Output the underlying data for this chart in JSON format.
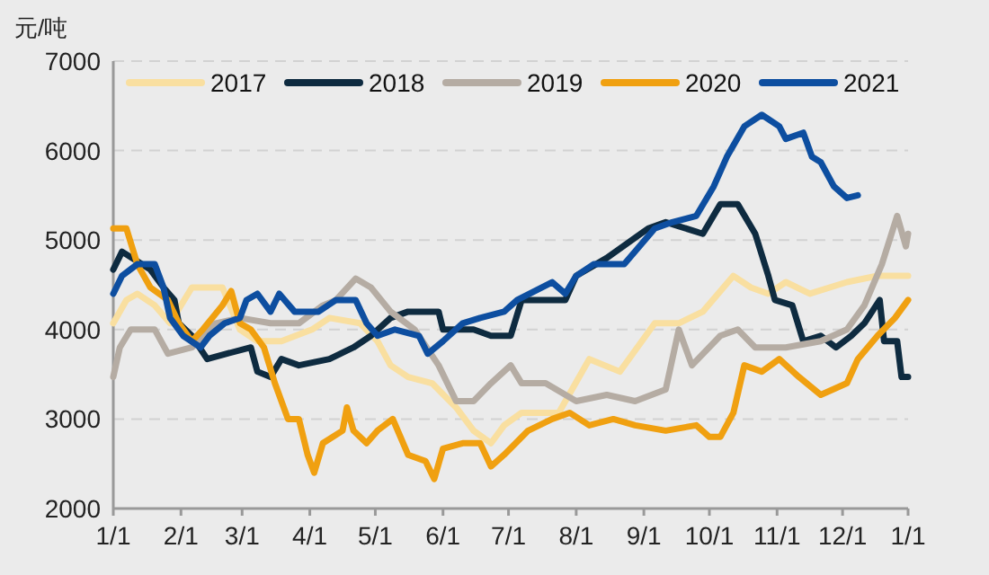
{
  "chart_data": {
    "type": "line",
    "ylabel": "元/吨",
    "xlim": [
      "--01-01",
      "--12-31"
    ],
    "ylim": [
      2000,
      7000
    ],
    "xticks": [
      {
        "value": "--01-01",
        "label": "1/1"
      },
      {
        "value": "--02-01",
        "label": "2/1"
      },
      {
        "value": "--03-01",
        "label": "3/1"
      },
      {
        "value": "--04-01",
        "label": "4/1"
      },
      {
        "value": "--05-01",
        "label": "5/1"
      },
      {
        "value": "--06-01",
        "label": "6/1"
      },
      {
        "value": "--07-01",
        "label": "7/1"
      },
      {
        "value": "--08-01",
        "label": "8/1"
      },
      {
        "value": "--09-01",
        "label": "9/1"
      },
      {
        "value": "--10-01",
        "label": "10/1"
      },
      {
        "value": "--11-01",
        "label": "11/1"
      },
      {
        "value": "--12-01",
        "label": "12/1"
      },
      {
        "value": "--12-31",
        "label": "1/1"
      }
    ],
    "yticks": [
      2000,
      3000,
      4000,
      5000,
      6000,
      7000
    ],
    "grid": "y",
    "legend": "top",
    "marker": "none",
    "line_style": "solid",
    "series": [
      {
        "name": "2017",
        "color": "#f9dfa0",
        "x": [
          "--01-01",
          "--01-07",
          "--01-12",
          "--01-20",
          "--01-27",
          "--02-06",
          "--02-20",
          "--02-28",
          "--03-08",
          "--03-19",
          "--04-02",
          "--04-10",
          "--04-24",
          "--05-02",
          "--05-08",
          "--05-16",
          "--05-27",
          "--06-07",
          "--06-15",
          "--06-23",
          "--06-29",
          "--07-07",
          "--07-24",
          "--08-07",
          "--08-21",
          "--09-06",
          "--09-17",
          "--09-28",
          "--10-12",
          "--10-20",
          "--10-28",
          "--11-05",
          "--11-16",
          "--12-03",
          "--12-17",
          "--12-31"
        ],
        "values": [
          4070,
          4330,
          4400,
          4270,
          4070,
          4470,
          4470,
          4000,
          3870,
          3870,
          4000,
          4130,
          4070,
          3870,
          3600,
          3470,
          3400,
          3130,
          2870,
          2730,
          2930,
          3070,
          3070,
          3670,
          3530,
          4070,
          4070,
          4200,
          4600,
          4470,
          4400,
          4530,
          4400,
          4530,
          4600,
          4600
        ]
      },
      {
        "name": "2018",
        "color": "#0e2b40",
        "x": [
          "--01-01",
          "--01-05",
          "--01-18",
          "--01-24",
          "--01-29",
          "--01-31",
          "--02-06",
          "--02-13",
          "--02-22",
          "--03-05",
          "--03-08",
          "--03-14",
          "--03-19",
          "--03-27",
          "--04-10",
          "--04-21",
          "--04-29",
          "--05-08",
          "--05-16",
          "--05-30",
          "--06-01",
          "--06-15",
          "--06-23",
          "--07-02",
          "--07-07",
          "--07-27",
          "--08-01",
          "--08-15",
          "--09-03",
          "--09-11",
          "--09-28",
          "--10-06",
          "--10-14",
          "--10-22",
          "--10-28",
          "--10-31",
          "--11-08",
          "--11-13",
          "--11-21",
          "--11-28",
          "--12-05",
          "--12-11",
          "--12-18",
          "--12-20",
          "--12-26",
          "--12-28",
          "--12-31"
        ],
        "values": [
          4670,
          4870,
          4670,
          4470,
          4330,
          4070,
          3930,
          3670,
          3730,
          3800,
          3530,
          3470,
          3670,
          3600,
          3670,
          3800,
          3930,
          4130,
          4200,
          4200,
          4000,
          4000,
          3930,
          3930,
          4330,
          4330,
          4600,
          4800,
          5130,
          5200,
          5070,
          5400,
          5400,
          5070,
          4600,
          4330,
          4270,
          3870,
          3930,
          3800,
          3930,
          4070,
          4330,
          3870,
          3870,
          3470,
          3470
        ]
      },
      {
        "name": "2019",
        "color": "#b5aca3",
        "x": [
          "--01-01",
          "--01-04",
          "--01-09",
          "--01-20",
          "--01-26",
          "--02-06",
          "--02-17",
          "--02-28",
          "--03-14",
          "--03-27",
          "--04-07",
          "--04-13",
          "--04-22",
          "--04-29",
          "--05-08",
          "--05-19",
          "--05-30",
          "--06-07",
          "--06-15",
          "--06-23",
          "--07-02",
          "--07-07",
          "--07-18",
          "--08-01",
          "--08-15",
          "--08-28",
          "--09-11",
          "--09-17",
          "--09-23",
          "--10-06",
          "--10-14",
          "--10-22",
          "--11-05",
          "--11-21",
          "--12-03",
          "--12-11",
          "--12-19",
          "--12-26",
          "--12-30",
          "--12-31"
        ],
        "values": [
          3470,
          3800,
          4000,
          4000,
          3730,
          3800,
          4070,
          4130,
          4070,
          4070,
          4270,
          4330,
          4570,
          4470,
          4200,
          4000,
          3600,
          3200,
          3200,
          3400,
          3600,
          3400,
          3400,
          3200,
          3270,
          3200,
          3330,
          4000,
          3600,
          3930,
          4000,
          3800,
          3800,
          3870,
          4000,
          4270,
          4730,
          5270,
          4930,
          5070
        ]
      },
      {
        "name": "2020",
        "color": "#f0a010",
        "x": [
          "--01-01",
          "--01-07",
          "--01-12",
          "--01-18",
          "--01-26",
          "--01-31",
          "--02-06",
          "--02-11",
          "--02-20",
          "--02-24",
          "--02-28",
          "--03-05",
          "--03-11",
          "--03-16",
          "--03-22",
          "--03-27",
          "--03-31",
          "--04-03",
          "--04-07",
          "--04-16",
          "--04-18",
          "--04-21",
          "--04-27",
          "--05-02",
          "--05-09",
          "--05-16",
          "--05-24",
          "--05-28",
          "--06-01",
          "--06-10",
          "--06-18",
          "--06-23",
          "--06-29",
          "--07-10",
          "--07-21",
          "--07-29",
          "--08-07",
          "--08-18",
          "--08-28",
          "--09-11",
          "--09-25",
          "--10-01",
          "--10-06",
          "--10-12",
          "--10-17",
          "--10-25",
          "--11-02",
          "--11-11",
          "--11-21",
          "--12-03",
          "--12-08",
          "--12-17",
          "--12-25",
          "--12-31"
        ],
        "values": [
          5130,
          5130,
          4730,
          4470,
          4330,
          4070,
          3870,
          4000,
          4270,
          4430,
          4070,
          4000,
          3800,
          3400,
          3000,
          3000,
          2600,
          2400,
          2730,
          2870,
          3130,
          2870,
          2730,
          2870,
          3000,
          2600,
          2530,
          2330,
          2670,
          2730,
          2730,
          2470,
          2600,
          2870,
          3000,
          3070,
          2930,
          3000,
          2930,
          2870,
          2930,
          2800,
          2800,
          3070,
          3600,
          3530,
          3670,
          3470,
          3270,
          3400,
          3670,
          3930,
          4130,
          4330
        ]
      },
      {
        "name": "2021",
        "color": "#0d4ea0",
        "x": [
          "--01-01",
          "--01-05",
          "--01-12",
          "--01-20",
          "--01-24",
          "--01-27",
          "--02-02",
          "--02-10",
          "--02-14",
          "--02-21",
          "--02-28",
          "--03-03",
          "--03-08",
          "--03-14",
          "--03-18",
          "--03-25",
          "--04-05",
          "--04-13",
          "--04-22",
          "--04-27",
          "--05-02",
          "--05-10",
          "--05-21",
          "--05-25",
          "--06-01",
          "--06-10",
          "--06-18",
          "--06-29",
          "--07-05",
          "--07-21",
          "--07-27",
          "--08-01",
          "--08-09",
          "--08-23",
          "--09-06",
          "--09-14",
          "--09-25",
          "--10-03",
          "--10-09",
          "--10-17",
          "--10-25",
          "--11-02",
          "--11-05",
          "--11-13",
          "--11-17",
          "--11-21",
          "--11-27",
          "--12-03",
          "--12-08"
        ],
        "values": [
          4400,
          4600,
          4730,
          4730,
          4470,
          4130,
          3930,
          3800,
          3930,
          4070,
          4130,
          4330,
          4400,
          4200,
          4400,
          4200,
          4200,
          4330,
          4330,
          4070,
          3930,
          4000,
          3930,
          3730,
          3870,
          4070,
          4130,
          4200,
          4330,
          4530,
          4400,
          4600,
          4730,
          4730,
          5130,
          5200,
          5270,
          5600,
          5930,
          6270,
          6400,
          6270,
          6130,
          6200,
          5930,
          5870,
          5600,
          5470,
          5500
        ]
      }
    ]
  }
}
